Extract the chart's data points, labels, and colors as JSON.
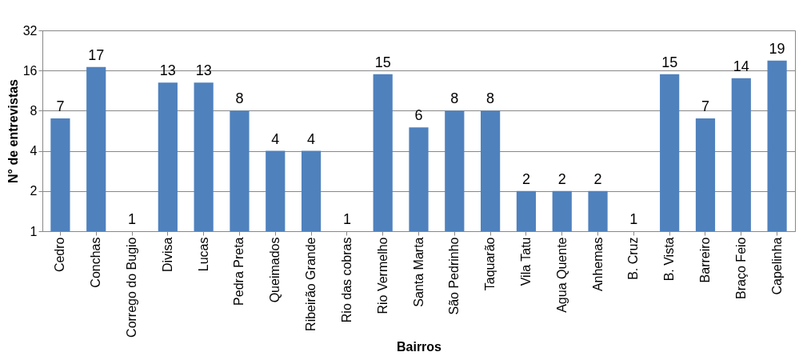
{
  "chart_data": {
    "type": "bar",
    "xlabel": "Bairros",
    "ylabel": "N° de entrevistas",
    "categories": [
      "Cedro",
      "Conchas",
      "Corrego do Bugio",
      "Divisa",
      "Lucas",
      "Pedra Preta",
      "Queimados",
      "Ribeirão Grande",
      "Rio das cobras",
      "Rio Vermelho",
      "Santa Marta",
      "São Pedrinho",
      "Taquarão",
      "Vila Tatu",
      "Agua Quente",
      "Anhemas",
      "B. Cruz",
      "B. Vista",
      "Barreiro",
      "Braço Feio",
      "Capelinha"
    ],
    "values": [
      7,
      17,
      1,
      13,
      13,
      8,
      4,
      4,
      1,
      15,
      6,
      8,
      8,
      2,
      2,
      2,
      1,
      15,
      7,
      14,
      19
    ],
    "color": "#4f81bd",
    "log": "y",
    "ylim": [
      1,
      32
    ],
    "yticks": [
      1,
      2,
      4,
      8,
      16,
      32
    ],
    "grid": "y",
    "data_labels": true
  }
}
